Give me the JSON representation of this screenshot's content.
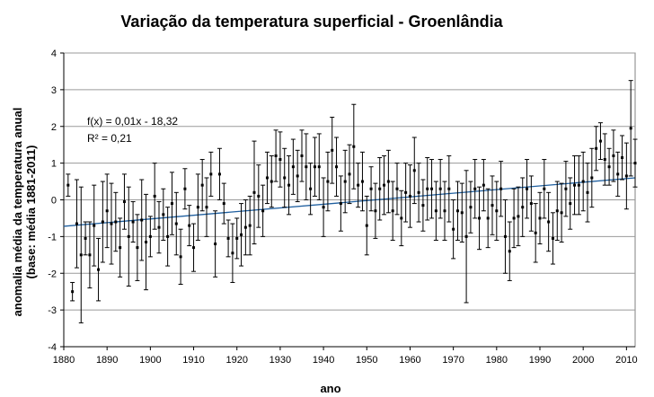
{
  "chart_data": {
    "type": "scatter",
    "title": "Variação da temperatura superficial - Groenlândia",
    "xlabel": "ano",
    "ylabel": "anomalia média da temperatura anual",
    "ylabel2": "(base: média 1881-2011)",
    "xlim": [
      1880,
      2012
    ],
    "ylim": [
      -4,
      4
    ],
    "x_ticks": [
      "1880",
      "1890",
      "1900",
      "1910",
      "1920",
      "1930",
      "1940",
      "1950",
      "1960",
      "1970",
      "1980",
      "1990",
      "2000",
      "2010"
    ],
    "y_ticks": [
      "-4",
      "-3",
      "-2",
      "-1",
      "0",
      "1",
      "2",
      "3",
      "4"
    ],
    "grid": "horizontal",
    "annotation": {
      "equation": "f(x) = 0,01x - 18,32",
      "r2": "R² = 0,21"
    },
    "trendline": {
      "x": [
        1880,
        2012
      ],
      "y": [
        -0.72,
        0.6
      ]
    },
    "series": [
      {
        "points": [
          [
            1881,
            0.4,
            0.3
          ],
          [
            1882,
            -2.5,
            0.25
          ],
          [
            1883,
            -0.65,
            1.2
          ],
          [
            1884,
            -1.5,
            1.85
          ],
          [
            1885,
            -1.05,
            0.45
          ],
          [
            1886,
            -1.5,
            0.9
          ],
          [
            1887,
            -0.7,
            1.1
          ],
          [
            1888,
            -1.9,
            0.85
          ],
          [
            1889,
            -0.6,
            1.1
          ],
          [
            1890,
            -0.3,
            1
          ],
          [
            1891,
            -0.65,
            1.1
          ],
          [
            1892,
            -0.6,
            0.8
          ],
          [
            1893,
            -1.3,
            0.8
          ],
          [
            1894,
            -0.05,
            0.75
          ],
          [
            1895,
            -1,
            1.35
          ],
          [
            1896,
            -0.6,
            0.55
          ],
          [
            1897,
            -1.3,
            0.9
          ],
          [
            1898,
            -0.55,
            1.1
          ],
          [
            1899,
            -1.15,
            1.3
          ],
          [
            1900,
            -1,
            0.55
          ],
          [
            1901,
            0.1,
            0.9
          ],
          [
            1902,
            -0.75,
            0.7
          ],
          [
            1903,
            -0.4,
            0.7
          ],
          [
            1904,
            -1,
            0.8
          ],
          [
            1905,
            -0.1,
            0.85
          ],
          [
            1906,
            -0.65,
            0.85
          ],
          [
            1907,
            -1.55,
            0.75
          ],
          [
            1908,
            0.3,
            0.55
          ],
          [
            1909,
            -0.7,
            0.55
          ],
          [
            1910,
            -1.3,
            0.65
          ],
          [
            1911,
            -0.2,
            0.9
          ],
          [
            1912,
            0.4,
            0.7
          ],
          [
            1913,
            -0.2,
            0.8
          ],
          [
            1914,
            0.7,
            0.6
          ],
          [
            1915,
            -1.2,
            0.9
          ],
          [
            1916,
            0.7,
            0.7
          ],
          [
            1917,
            -0.1,
            0.55
          ],
          [
            1918,
            -1.05,
            0.5
          ],
          [
            1919,
            -1.45,
            0.8
          ],
          [
            1920,
            -1.05,
            0.55
          ],
          [
            1921,
            -0.95,
            0.85
          ],
          [
            1922,
            -0.75,
            0.75
          ],
          [
            1923,
            -0.7,
            0.8
          ],
          [
            1924,
            0.2,
            1.4
          ],
          [
            1925,
            0.1,
            0.85
          ],
          [
            1926,
            -0.3,
            0.7
          ],
          [
            1927,
            0.6,
            0.7
          ],
          [
            1928,
            0.5,
            0.7
          ],
          [
            1929,
            1.2,
            0.7
          ],
          [
            1930,
            1.1,
            0.75
          ],
          [
            1931,
            0.6,
            0.8
          ],
          [
            1932,
            0.4,
            0.8
          ],
          [
            1933,
            0.9,
            0.75
          ],
          [
            1934,
            0.65,
            0.7
          ],
          [
            1935,
            1.2,
            0.7
          ],
          [
            1936,
            0.9,
            0.9
          ],
          [
            1937,
            0.3,
            0.7
          ],
          [
            1938,
            0.9,
            0.8
          ],
          [
            1939,
            0.9,
            0.9
          ],
          [
            1940,
            -0.2,
            0.8
          ],
          [
            1941,
            0.5,
            0.8
          ],
          [
            1942,
            1.35,
            0.9
          ],
          [
            1943,
            0.9,
            0.8
          ],
          [
            1944,
            -0.1,
            0.75
          ],
          [
            1945,
            0.5,
            0.85
          ],
          [
            1946,
            0.7,
            0.8
          ],
          [
            1947,
            1.45,
            1.15
          ],
          [
            1948,
            0.4,
            0.6
          ],
          [
            1949,
            0.5,
            0.8
          ],
          [
            1950,
            -0.7,
            0.8
          ],
          [
            1951,
            0.3,
            0.6
          ],
          [
            1952,
            -0.3,
            0.75
          ],
          [
            1953,
            0.3,
            0.85
          ],
          [
            1954,
            0.4,
            0.8
          ],
          [
            1955,
            0.5,
            0.85
          ],
          [
            1956,
            -0.3,
            0.8
          ],
          [
            1957,
            0.3,
            0.7
          ],
          [
            1958,
            -0.5,
            0.75
          ],
          [
            1959,
            0.2,
            0.8
          ],
          [
            1960,
            0.1,
            0.85
          ],
          [
            1961,
            0.8,
            0.9
          ],
          [
            1962,
            0.2,
            0.8
          ],
          [
            1963,
            -0.15,
            0.7
          ],
          [
            1964,
            0.3,
            0.85
          ],
          [
            1965,
            0.3,
            0.8
          ],
          [
            1966,
            -0.3,
            0.8
          ],
          [
            1967,
            0.3,
            0.8
          ],
          [
            1968,
            -0.3,
            0.8
          ],
          [
            1969,
            0.3,
            0.9
          ],
          [
            1970,
            -0.8,
            0.8
          ],
          [
            1971,
            -0.3,
            0.8
          ],
          [
            1972,
            -0.35,
            0.8
          ],
          [
            1973,
            -1,
            1.8
          ],
          [
            1974,
            -0.2,
            0.7
          ],
          [
            1975,
            0.3,
            0.8
          ],
          [
            1976,
            -0.5,
            0.85
          ],
          [
            1977,
            0.4,
            0.7
          ],
          [
            1978,
            -0.5,
            0.8
          ],
          [
            1979,
            -0.15,
            0.8
          ],
          [
            1980,
            -0.3,
            0.8
          ],
          [
            1981,
            0.3,
            0.75
          ],
          [
            1982,
            -1,
            1
          ],
          [
            1983,
            -1.4,
            0.8
          ],
          [
            1984,
            -0.5,
            0.8
          ],
          [
            1985,
            -0.45,
            0.8
          ],
          [
            1986,
            -0.2,
            0.8
          ],
          [
            1987,
            0.3,
            0.8
          ],
          [
            1988,
            -0.1,
            0.75
          ],
          [
            1989,
            -0.9,
            0.8
          ],
          [
            1990,
            -0.5,
            0.7
          ],
          [
            1991,
            0.3,
            0.8
          ],
          [
            1992,
            -0.6,
            0.8
          ],
          [
            1993,
            -1.05,
            0.7
          ],
          [
            1994,
            -0.3,
            0.8
          ],
          [
            1995,
            -0.35,
            0.8
          ],
          [
            1996,
            0.3,
            0.75
          ],
          [
            1997,
            -0.1,
            0.7
          ],
          [
            1998,
            0.4,
            0.8
          ],
          [
            1999,
            0.4,
            0.8
          ],
          [
            2000,
            0.5,
            0.8
          ],
          [
            2001,
            0.2,
            0.8
          ],
          [
            2002,
            0.6,
            0.8
          ],
          [
            2003,
            1.4,
            0.6
          ],
          [
            2004,
            1.6,
            0.5
          ],
          [
            2005,
            1.1,
            0.7
          ],
          [
            2006,
            0.9,
            0.5
          ],
          [
            2007,
            1.2,
            0.7
          ],
          [
            2008,
            0.7,
            0.6
          ],
          [
            2009,
            1.15,
            0.6
          ],
          [
            2010,
            0.65,
            0.9
          ],
          [
            2011,
            1.95,
            1.3
          ],
          [
            2012,
            1,
            0.65
          ]
        ]
      }
    ]
  }
}
